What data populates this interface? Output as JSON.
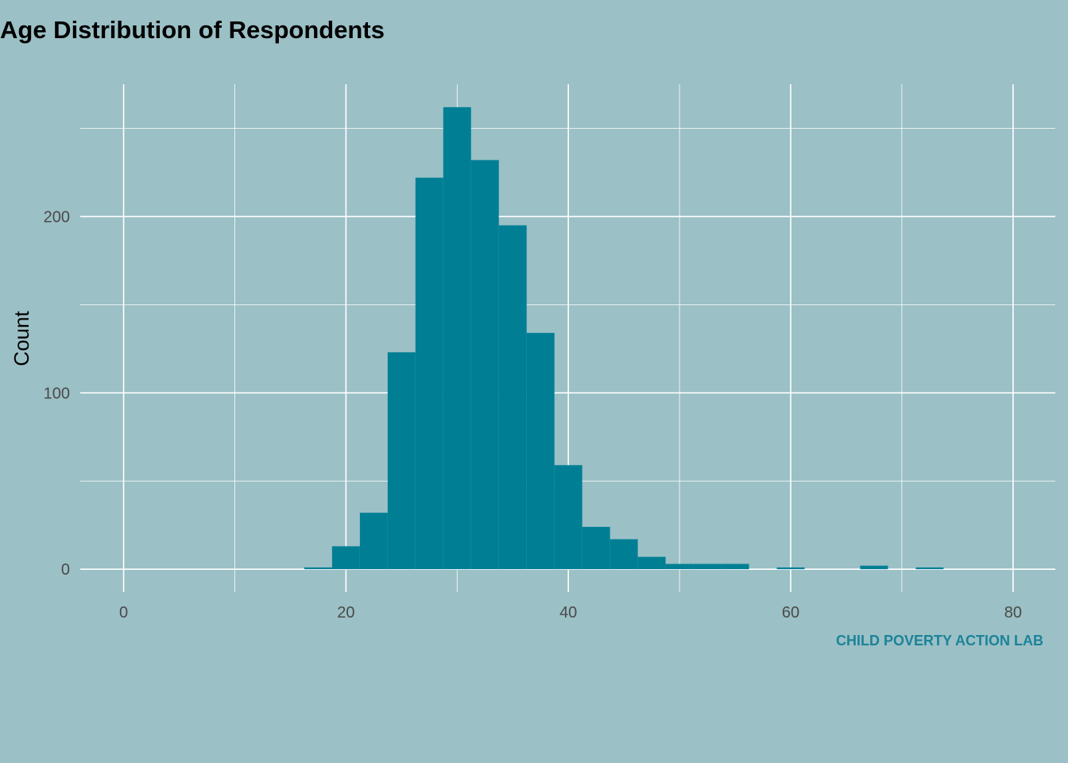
{
  "chart_data": {
    "type": "bar",
    "title": "Age Distribution of Respondents",
    "xlabel": "",
    "ylabel": "Count",
    "caption": "CHILD POVERTY ACTION LAB",
    "xlim": [
      -3.9,
      83.8
    ],
    "ylim": [
      -13,
      275
    ],
    "x_ticks": [
      0,
      20,
      40,
      60,
      80
    ],
    "y_ticks": [
      0,
      100,
      200
    ],
    "grid": true,
    "bin_width": 2.5,
    "bins": [
      {
        "x0": 16.25,
        "x1": 18.75,
        "count": 1
      },
      {
        "x0": 18.75,
        "x1": 21.25,
        "count": 13
      },
      {
        "x0": 21.25,
        "x1": 23.75,
        "count": 32
      },
      {
        "x0": 23.75,
        "x1": 26.25,
        "count": 123
      },
      {
        "x0": 26.25,
        "x1": 28.75,
        "count": 222
      },
      {
        "x0": 28.75,
        "x1": 31.25,
        "count": 262
      },
      {
        "x0": 31.25,
        "x1": 33.75,
        "count": 232
      },
      {
        "x0": 33.75,
        "x1": 36.25,
        "count": 195
      },
      {
        "x0": 36.25,
        "x1": 38.75,
        "count": 134
      },
      {
        "x0": 38.75,
        "x1": 41.25,
        "count": 59
      },
      {
        "x0": 41.25,
        "x1": 43.75,
        "count": 24
      },
      {
        "x0": 43.75,
        "x1": 46.25,
        "count": 17
      },
      {
        "x0": 46.25,
        "x1": 48.75,
        "count": 7
      },
      {
        "x0": 48.75,
        "x1": 51.25,
        "count": 3
      },
      {
        "x0": 51.25,
        "x1": 53.75,
        "count": 3
      },
      {
        "x0": 53.75,
        "x1": 56.25,
        "count": 3
      },
      {
        "x0": 58.75,
        "x1": 61.25,
        "count": 1
      },
      {
        "x0": 66.25,
        "x1": 68.75,
        "count": 2
      },
      {
        "x0": 71.25,
        "x1": 73.75,
        "count": 1
      }
    ]
  },
  "colors": {
    "background": "#9bc0c6",
    "bar": "#007f94",
    "caption": "#1c8399",
    "grid": "#ffffff"
  }
}
